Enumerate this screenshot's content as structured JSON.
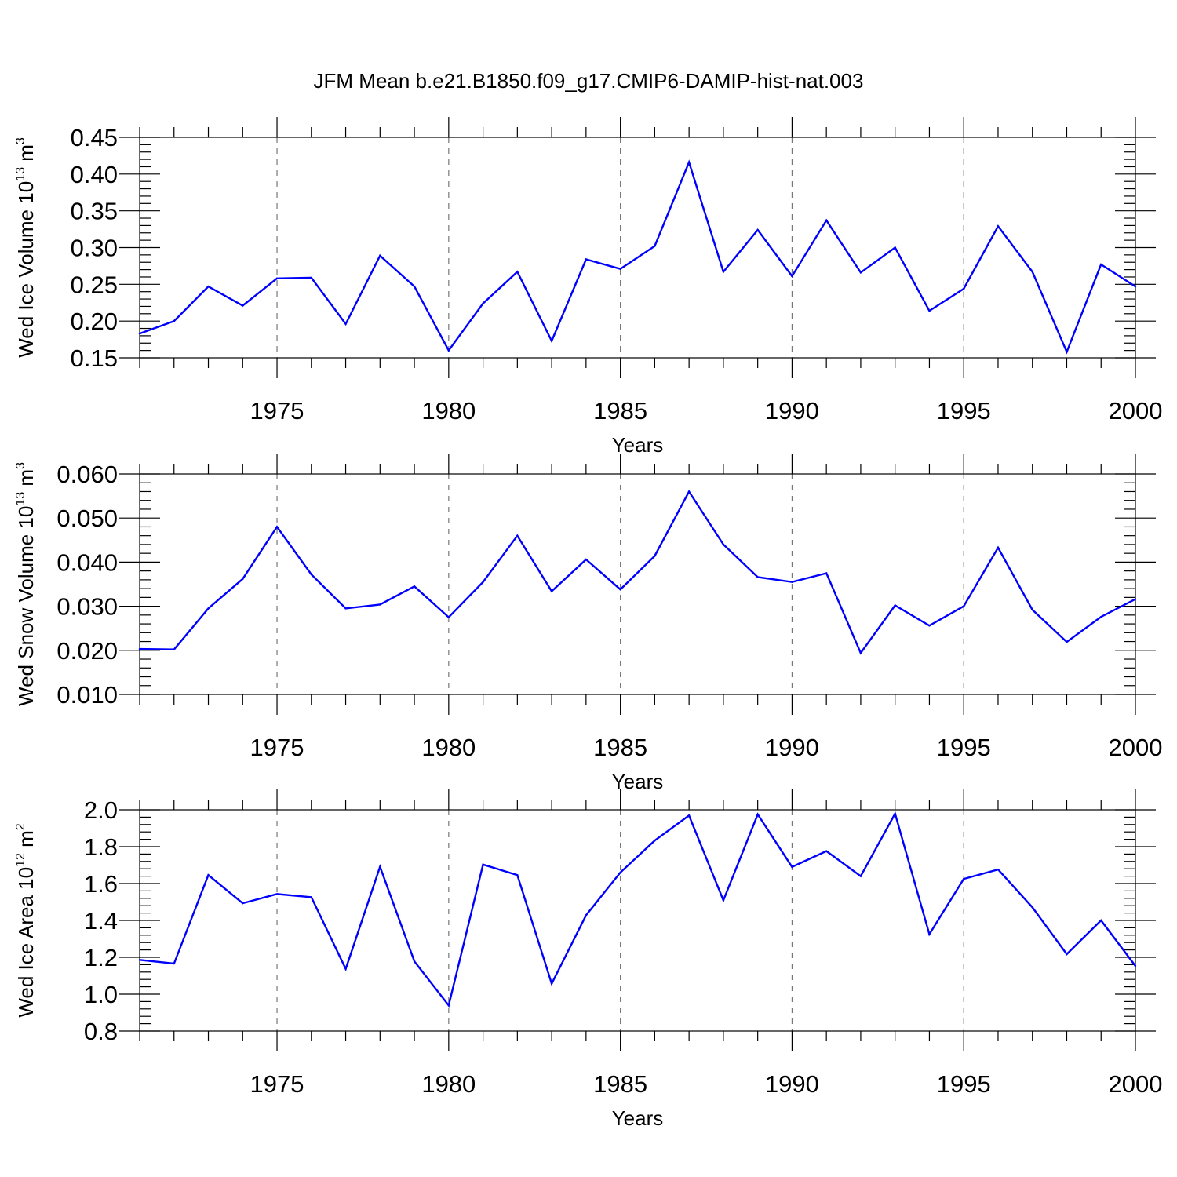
{
  "title": "JFM Mean b.e21.B1850.f09_g17.CMIP6-DAMIP-hist-nat.003",
  "chart_data": [
    {
      "type": "line",
      "title": "JFM Mean b.e21.B1850.f09_g17.CMIP6-DAMIP-hist-nat.003",
      "xlabel": "Years",
      "ylabel": {
        "main": "Wed Ice Volume 10",
        "sup1": "13",
        "mid": " m",
        "sup2": "3"
      },
      "xlim": [
        1971,
        2000
      ],
      "ylim": [
        0.15,
        0.45
      ],
      "xticks": [
        1975,
        1980,
        1985,
        1990,
        1995,
        2000
      ],
      "yticks": [
        0.15,
        0.2,
        0.25,
        0.3,
        0.35,
        0.4,
        0.45
      ],
      "ytick_labels": [
        "0.15",
        "0.20",
        "0.25",
        "0.30",
        "0.35",
        "0.40",
        "0.45"
      ],
      "grid": "vertical dashed at major x ticks",
      "color": "#0000ff",
      "x": [
        1971,
        1972,
        1973,
        1974,
        1975,
        1976,
        1977,
        1978,
        1979,
        1980,
        1981,
        1982,
        1983,
        1984,
        1985,
        1986,
        1987,
        1988,
        1989,
        1990,
        1991,
        1992,
        1993,
        1994,
        1995,
        1996,
        1997,
        1998,
        1999,
        2000
      ],
      "y": [
        0.183,
        0.2,
        0.247,
        0.221,
        0.258,
        0.259,
        0.196,
        0.289,
        0.247,
        0.16,
        0.224,
        0.267,
        0.173,
        0.284,
        0.271,
        0.302,
        0.416,
        0.267,
        0.324,
        0.261,
        0.337,
        0.266,
        0.3,
        0.214,
        0.244,
        0.329,
        0.267,
        0.158,
        0.277,
        0.247
      ]
    },
    {
      "type": "line",
      "title": "",
      "xlabel": "Years",
      "ylabel": {
        "main": "Wed Snow Volume 10",
        "sup1": "13",
        "mid": " m",
        "sup2": "3"
      },
      "xlim": [
        1971,
        2000
      ],
      "ylim": [
        0.01,
        0.06
      ],
      "xticks": [
        1975,
        1980,
        1985,
        1990,
        1995,
        2000
      ],
      "yticks": [
        0.01,
        0.02,
        0.03,
        0.04,
        0.05,
        0.06
      ],
      "ytick_labels": [
        "0.010",
        "0.020",
        "0.030",
        "0.040",
        "0.050",
        "0.060"
      ],
      "grid": "vertical dashed at major x ticks",
      "color": "#0000ff",
      "x": [
        1971,
        1972,
        1973,
        1974,
        1975,
        1976,
        1977,
        1978,
        1979,
        1980,
        1981,
        1982,
        1983,
        1984,
        1985,
        1986,
        1987,
        1988,
        1989,
        1990,
        1991,
        1992,
        1993,
        1994,
        1995,
        1996,
        1997,
        1998,
        1999,
        2000
      ],
      "y": [
        0.0203,
        0.0202,
        0.0295,
        0.0362,
        0.048,
        0.0372,
        0.0295,
        0.0304,
        0.0345,
        0.0275,
        0.0355,
        0.046,
        0.0334,
        0.0406,
        0.0338,
        0.0414,
        0.056,
        0.044,
        0.0366,
        0.0355,
        0.0375,
        0.0194,
        0.0302,
        0.0256,
        0.03,
        0.0433,
        0.0292,
        0.0219,
        0.0276,
        0.0316
      ]
    },
    {
      "type": "line",
      "title": "",
      "xlabel": "Years",
      "ylabel": {
        "main": "Wed Ice Area 10",
        "sup1": "12",
        "mid": " m",
        "sup2": "2"
      },
      "xlim": [
        1971,
        2000
      ],
      "ylim": [
        0.8,
        2.0
      ],
      "xticks": [
        1975,
        1980,
        1985,
        1990,
        1995,
        2000
      ],
      "yticks": [
        0.8,
        1.0,
        1.2,
        1.4,
        1.6,
        1.8,
        2.0
      ],
      "ytick_labels": [
        "0.8",
        "1.0",
        "1.2",
        "1.4",
        "1.6",
        "1.8",
        "2.0"
      ],
      "grid": "vertical dashed at major x ticks",
      "color": "#0000ff",
      "x": [
        1971,
        1972,
        1973,
        1974,
        1975,
        1976,
        1977,
        1978,
        1979,
        1980,
        1981,
        1982,
        1983,
        1984,
        1985,
        1986,
        1987,
        1988,
        1989,
        1990,
        1991,
        1992,
        1993,
        1994,
        1995,
        1996,
        1997,
        1998,
        1999,
        2000
      ],
      "y": [
        1.186,
        1.166,
        1.646,
        1.493,
        1.543,
        1.526,
        1.137,
        1.691,
        1.178,
        0.939,
        1.703,
        1.646,
        1.057,
        1.428,
        1.66,
        1.833,
        1.969,
        1.509,
        1.975,
        1.69,
        1.776,
        1.64,
        1.979,
        1.325,
        1.625,
        1.676,
        1.471,
        1.217,
        1.4,
        1.153
      ]
    }
  ]
}
